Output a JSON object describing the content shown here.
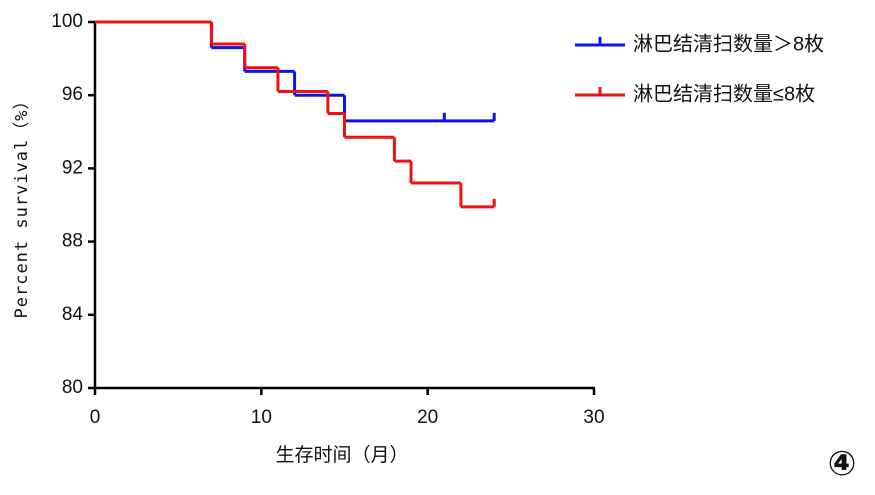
{
  "chart_data": {
    "type": "step",
    "xlabel": "生存时间（月）",
    "ylabel": "Percent survival（%）",
    "annotation": "④",
    "xlim": [
      0,
      30
    ],
    "xticks": [
      0,
      10,
      20,
      30
    ],
    "ylim": [
      80,
      100
    ],
    "yticks": [
      80,
      84,
      88,
      92,
      96,
      100
    ],
    "legend": "top-right",
    "series": [
      {
        "name": "淋巴结清扫数量＞8枚",
        "color": "#0a14e6",
        "x": [
          0,
          7,
          9,
          12,
          15
        ],
        "values": [
          100,
          98.6,
          97.3,
          96.0,
          94.6
        ],
        "censor_x": [
          21,
          24
        ],
        "censor_values": [
          94.6,
          94.6
        ]
      },
      {
        "name": "淋巴结清扫数量≤8枚",
        "color": "#ee1111",
        "x": [
          0,
          7,
          9,
          11,
          14,
          15,
          18,
          19,
          22
        ],
        "values": [
          100,
          98.8,
          97.5,
          96.2,
          95.0,
          93.7,
          92.4,
          91.2,
          89.9
        ],
        "censor_x": [
          24
        ],
        "censor_values": [
          89.9
        ]
      }
    ]
  }
}
